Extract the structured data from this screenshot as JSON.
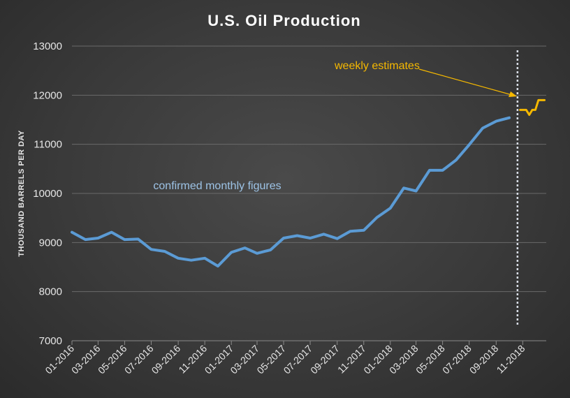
{
  "chart_data": {
    "type": "line",
    "title": "U.S. Oil Production",
    "ylabel": "THOUSAND BARRELS PER DAY",
    "xlabel": "",
    "ylim": [
      7000,
      13000
    ],
    "yticks": [
      7000,
      8000,
      9000,
      10000,
      11000,
      12000,
      13000
    ],
    "x_tick_labels": [
      "01-2016",
      "03-2016",
      "05-2016",
      "07-2016",
      "09-2016",
      "11-2016",
      "01-2017",
      "03-2017",
      "05-2017",
      "07-2017",
      "09-2017",
      "11-2017",
      "01-2018",
      "03-2018",
      "05-2018",
      "07-2018",
      "09-2018",
      "11-2018"
    ],
    "grid": true,
    "annotations": {
      "monthly_label": "confirmed monthly figures",
      "weekly_label": "weekly estimates"
    },
    "series": [
      {
        "name": "confirmed monthly figures",
        "color": "#5b9bd5",
        "x": [
          "2016-01",
          "2016-02",
          "2016-03",
          "2016-04",
          "2016-05",
          "2016-06",
          "2016-07",
          "2016-08",
          "2016-09",
          "2016-10",
          "2016-11",
          "2016-12",
          "2017-01",
          "2017-02",
          "2017-03",
          "2017-04",
          "2017-05",
          "2017-06",
          "2017-07",
          "2017-08",
          "2017-09",
          "2017-10",
          "2017-11",
          "2017-12",
          "2018-01",
          "2018-02",
          "2018-03",
          "2018-04",
          "2018-05",
          "2018-06",
          "2018-07",
          "2018-08",
          "2018-09",
          "2018-10"
        ],
        "values": [
          9210,
          9060,
          9090,
          9210,
          9060,
          9070,
          8860,
          8820,
          8680,
          8640,
          8680,
          8520,
          8800,
          8890,
          8780,
          8850,
          9090,
          9140,
          9090,
          9170,
          9080,
          9230,
          9250,
          9510,
          9700,
          10110,
          10050,
          10470,
          10470,
          10680,
          10990,
          11330,
          11470,
          11540
        ]
      },
      {
        "name": "weekly estimates",
        "color": "#f5b800",
        "x": [
          "2018-10-26",
          "2018-11-02",
          "2018-11-09",
          "2018-11-16",
          "2018-11-23",
          "2018-11-30",
          "2018-12-07",
          "2018-12-14",
          "2018-12-21"
        ],
        "values": [
          11700,
          11700,
          11700,
          11600,
          11700,
          11700,
          11900,
          11900,
          11900
        ]
      }
    ]
  }
}
